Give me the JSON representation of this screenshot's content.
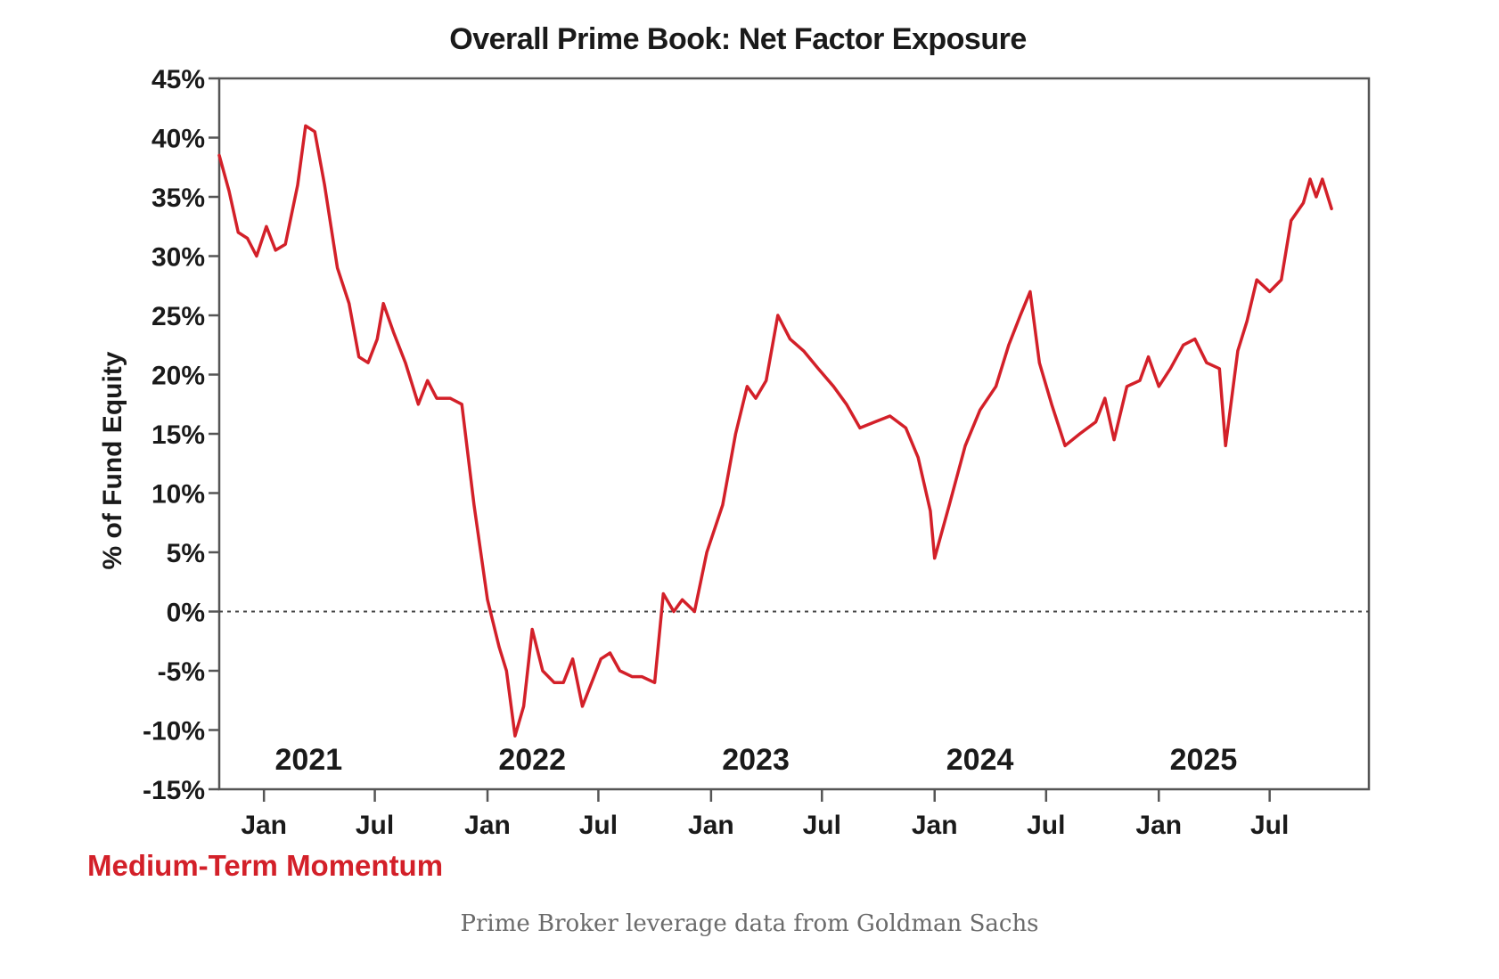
{
  "colors": {
    "series": "#d32029",
    "axis": "#555555",
    "text": "#1a1a1a",
    "caption": "#6b6b6b"
  },
  "caption": "Prime Broker leverage data from Goldman Sachs",
  "chart_data": {
    "type": "line",
    "title": "Overall Prime Book: Net Factor Exposure",
    "xlabel": "",
    "ylabel": "% of Fund Equity",
    "ylim": [
      -15,
      45
    ],
    "yticks": [
      45,
      40,
      35,
      30,
      25,
      20,
      15,
      10,
      5,
      0,
      -5,
      -10,
      -15
    ],
    "ytick_labels": [
      "45%",
      "40%",
      "35%",
      "30%",
      "25%",
      "20%",
      "15%",
      "10%",
      "5%",
      "0%",
      "-5%",
      "-10%",
      "-15%"
    ],
    "xlim": [
      "2020-10-20",
      "2025-12-10"
    ],
    "xticks": [
      {
        "date": "2021-01-01",
        "label": "Jan"
      },
      {
        "date": "2021-07-01",
        "label": "Jul"
      },
      {
        "date": "2022-01-01",
        "label": "Jan"
      },
      {
        "date": "2022-07-01",
        "label": "Jul"
      },
      {
        "date": "2023-01-01",
        "label": "Jan"
      },
      {
        "date": "2023-07-01",
        "label": "Jul"
      },
      {
        "date": "2024-01-01",
        "label": "Jan"
      },
      {
        "date": "2024-07-01",
        "label": "Jul"
      },
      {
        "date": "2025-01-01",
        "label": "Jan"
      },
      {
        "date": "2025-07-01",
        "label": "Jul"
      }
    ],
    "year_labels": [
      {
        "date": "2021-03-15",
        "label": "2021"
      },
      {
        "date": "2022-03-15",
        "label": "2022"
      },
      {
        "date": "2023-03-15",
        "label": "2023"
      },
      {
        "date": "2024-03-15",
        "label": "2024"
      },
      {
        "date": "2025-03-15",
        "label": "2025"
      }
    ],
    "reference_line": {
      "y": 0,
      "style": "dotted"
    },
    "grid": false,
    "series": [
      {
        "name": "Medium-Term Momentum",
        "points": [
          [
            "2020-10-20",
            38.5
          ],
          [
            "2020-11-05",
            35.5
          ],
          [
            "2020-11-20",
            32
          ],
          [
            "2020-12-05",
            31.5
          ],
          [
            "2020-12-20",
            30
          ],
          [
            "2021-01-05",
            32.5
          ],
          [
            "2021-01-20",
            30.5
          ],
          [
            "2021-02-05",
            31
          ],
          [
            "2021-02-25",
            36
          ],
          [
            "2021-03-10",
            41
          ],
          [
            "2021-03-25",
            40.5
          ],
          [
            "2021-04-10",
            36
          ],
          [
            "2021-05-01",
            29
          ],
          [
            "2021-05-20",
            26
          ],
          [
            "2021-06-05",
            21.5
          ],
          [
            "2021-06-20",
            21
          ],
          [
            "2021-07-05",
            23
          ],
          [
            "2021-07-15",
            26
          ],
          [
            "2021-08-01",
            23.5
          ],
          [
            "2021-08-20",
            21
          ],
          [
            "2021-09-10",
            17.5
          ],
          [
            "2021-09-25",
            19.5
          ],
          [
            "2021-10-10",
            18
          ],
          [
            "2021-11-01",
            18
          ],
          [
            "2021-11-20",
            17.5
          ],
          [
            "2021-12-10",
            9
          ],
          [
            "2022-01-01",
            1
          ],
          [
            "2022-01-20",
            -3
          ],
          [
            "2022-02-01",
            -5
          ],
          [
            "2022-02-15",
            -10.5
          ],
          [
            "2022-03-01",
            -8
          ],
          [
            "2022-03-15",
            -1.5
          ],
          [
            "2022-04-01",
            -5
          ],
          [
            "2022-04-20",
            -6
          ],
          [
            "2022-05-05",
            -6
          ],
          [
            "2022-05-20",
            -4
          ],
          [
            "2022-06-05",
            -8
          ],
          [
            "2022-06-20",
            -6
          ],
          [
            "2022-07-05",
            -4
          ],
          [
            "2022-07-20",
            -3.5
          ],
          [
            "2022-08-05",
            -5
          ],
          [
            "2022-08-25",
            -5.5
          ],
          [
            "2022-09-10",
            -5.5
          ],
          [
            "2022-10-01",
            -6
          ],
          [
            "2022-10-15",
            1.5
          ],
          [
            "2022-11-01",
            0
          ],
          [
            "2022-11-15",
            1
          ],
          [
            "2022-12-05",
            0
          ],
          [
            "2022-12-25",
            5
          ],
          [
            "2023-01-20",
            9
          ],
          [
            "2023-02-10",
            15
          ],
          [
            "2023-03-01",
            19
          ],
          [
            "2023-03-15",
            18
          ],
          [
            "2023-04-01",
            19.5
          ],
          [
            "2023-04-20",
            25
          ],
          [
            "2023-05-10",
            23
          ],
          [
            "2023-06-01",
            22
          ],
          [
            "2023-06-25",
            20.5
          ],
          [
            "2023-07-20",
            19
          ],
          [
            "2023-08-10",
            17.5
          ],
          [
            "2023-09-01",
            15.5
          ],
          [
            "2023-09-25",
            16
          ],
          [
            "2023-10-20",
            16.5
          ],
          [
            "2023-11-15",
            15.5
          ],
          [
            "2023-12-05",
            13
          ],
          [
            "2023-12-25",
            8.5
          ],
          [
            "2024-01-01",
            4.5
          ],
          [
            "2024-01-25",
            9
          ],
          [
            "2024-02-20",
            14
          ],
          [
            "2024-03-15",
            17
          ],
          [
            "2024-04-10",
            19
          ],
          [
            "2024-05-01",
            22.5
          ],
          [
            "2024-05-20",
            25
          ],
          [
            "2024-06-05",
            27
          ],
          [
            "2024-06-20",
            21
          ],
          [
            "2024-07-10",
            17.5
          ],
          [
            "2024-08-01",
            14
          ],
          [
            "2024-08-25",
            15
          ],
          [
            "2024-09-20",
            16
          ],
          [
            "2024-10-05",
            18
          ],
          [
            "2024-10-20",
            14.5
          ],
          [
            "2024-11-10",
            19
          ],
          [
            "2024-12-01",
            19.5
          ],
          [
            "2024-12-15",
            21.5
          ],
          [
            "2025-01-01",
            19
          ],
          [
            "2025-01-20",
            20.5
          ],
          [
            "2025-02-10",
            22.5
          ],
          [
            "2025-03-01",
            23
          ],
          [
            "2025-03-20",
            21
          ],
          [
            "2025-04-10",
            20.5
          ],
          [
            "2025-04-20",
            14
          ],
          [
            "2025-05-10",
            22
          ],
          [
            "2025-05-25",
            24.5
          ],
          [
            "2025-06-10",
            28
          ],
          [
            "2025-07-01",
            27
          ],
          [
            "2025-07-20",
            28
          ],
          [
            "2025-08-05",
            33
          ],
          [
            "2025-08-25",
            34.5
          ],
          [
            "2025-09-05",
            36.5
          ],
          [
            "2025-09-15",
            35
          ],
          [
            "2025-09-25",
            36.5
          ],
          [
            "2025-10-10",
            34
          ]
        ]
      }
    ]
  }
}
